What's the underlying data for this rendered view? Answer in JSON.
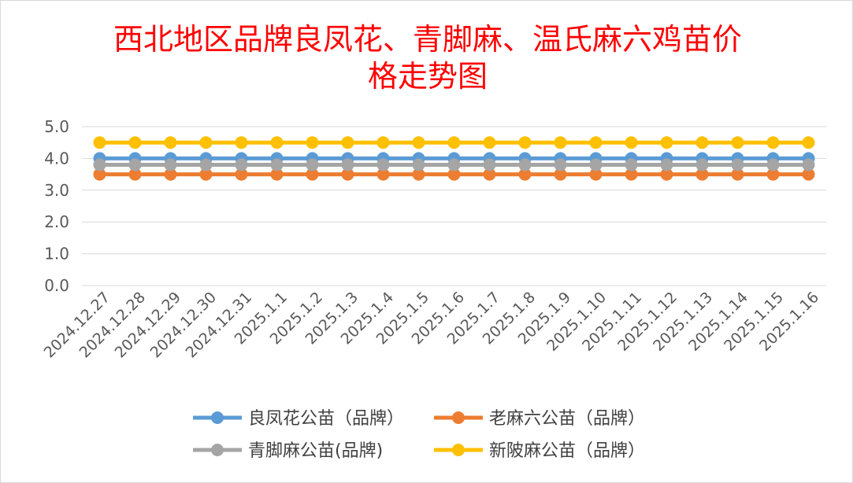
{
  "chart_data": {
    "type": "line",
    "title_lines": [
      "西北地区品牌良凤花、青脚麻、温氏麻六鸡苗价",
      "格走势图"
    ],
    "xlabel": "",
    "ylabel": "",
    "ylim": [
      0,
      5
    ],
    "y_ticks": [
      "5.0",
      "4.0",
      "3.0",
      "2.0",
      "1.0",
      "0.0"
    ],
    "grid": true,
    "legend_position": "bottom",
    "categories": [
      "2024.12.27",
      "2024.12.28",
      "2024.12.29",
      "2024.12.30",
      "2024.12.31",
      "2025.1.1",
      "2025.1.2",
      "2025.1.3",
      "2025.1.4",
      "2025.1.5",
      "2025.1.6",
      "2025.1.7",
      "2025.1.8",
      "2025.1.9",
      "2025.1.10",
      "2025.1.11",
      "2025.1.12",
      "2025.1.13",
      "2025.1.14",
      "2025.1.15",
      "2025.1.16"
    ],
    "series": [
      {
        "name": "良凤花公苗（品牌）",
        "color": "#5b9bd5",
        "values": [
          4.0,
          4.0,
          4.0,
          4.0,
          4.0,
          4.0,
          4.0,
          4.0,
          4.0,
          4.0,
          4.0,
          4.0,
          4.0,
          4.0,
          4.0,
          4.0,
          4.0,
          4.0,
          4.0,
          4.0,
          4.0
        ]
      },
      {
        "name": "老麻六公苗（品牌）",
        "color": "#ed7d31",
        "values": [
          3.5,
          3.5,
          3.5,
          3.5,
          3.5,
          3.5,
          3.5,
          3.5,
          3.5,
          3.5,
          3.5,
          3.5,
          3.5,
          3.5,
          3.5,
          3.5,
          3.5,
          3.5,
          3.5,
          3.5,
          3.5
        ]
      },
      {
        "name": "青脚麻公苗(品牌)",
        "color": "#a5a5a5",
        "values": [
          3.8,
          3.8,
          3.8,
          3.8,
          3.8,
          3.8,
          3.8,
          3.8,
          3.8,
          3.8,
          3.8,
          3.8,
          3.8,
          3.8,
          3.8,
          3.8,
          3.8,
          3.8,
          3.8,
          3.8,
          3.8
        ]
      },
      {
        "name": "新陂麻公苗（品牌）",
        "color": "#ffc000",
        "values": [
          4.5,
          4.5,
          4.5,
          4.5,
          4.5,
          4.5,
          4.5,
          4.5,
          4.5,
          4.5,
          4.5,
          4.5,
          4.5,
          4.5,
          4.5,
          4.5,
          4.5,
          4.5,
          4.5,
          4.5,
          4.5
        ]
      }
    ]
  }
}
